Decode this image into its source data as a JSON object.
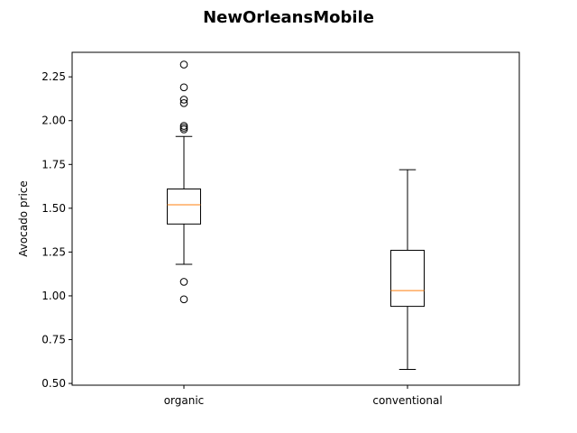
{
  "chart_data": {
    "type": "box",
    "title": "NewOrleansMobile",
    "xlabel": "",
    "ylabel": "Avocado price",
    "ylim": [
      0.49,
      2.39
    ],
    "yticks": [
      "0.50",
      "0.75",
      "1.00",
      "1.25",
      "1.50",
      "1.75",
      "2.00",
      "2.25"
    ],
    "grid": false,
    "colors": {
      "box": "#000000",
      "median": "#ff7f0e",
      "whisker": "#000000",
      "flier": "#000000"
    },
    "categories": [
      "organic",
      "conventional"
    ],
    "boxes": [
      {
        "category": "organic",
        "whisker_low": 1.18,
        "q1": 1.41,
        "median": 1.52,
        "q3": 1.61,
        "whisker_high": 1.91,
        "fliers": [
          0.98,
          1.08,
          1.95,
          1.96,
          1.97,
          2.1,
          2.12,
          2.19,
          2.32
        ]
      },
      {
        "category": "conventional",
        "whisker_low": 0.58,
        "q1": 0.94,
        "median": 1.03,
        "q3": 1.26,
        "whisker_high": 1.72,
        "fliers": []
      }
    ]
  }
}
